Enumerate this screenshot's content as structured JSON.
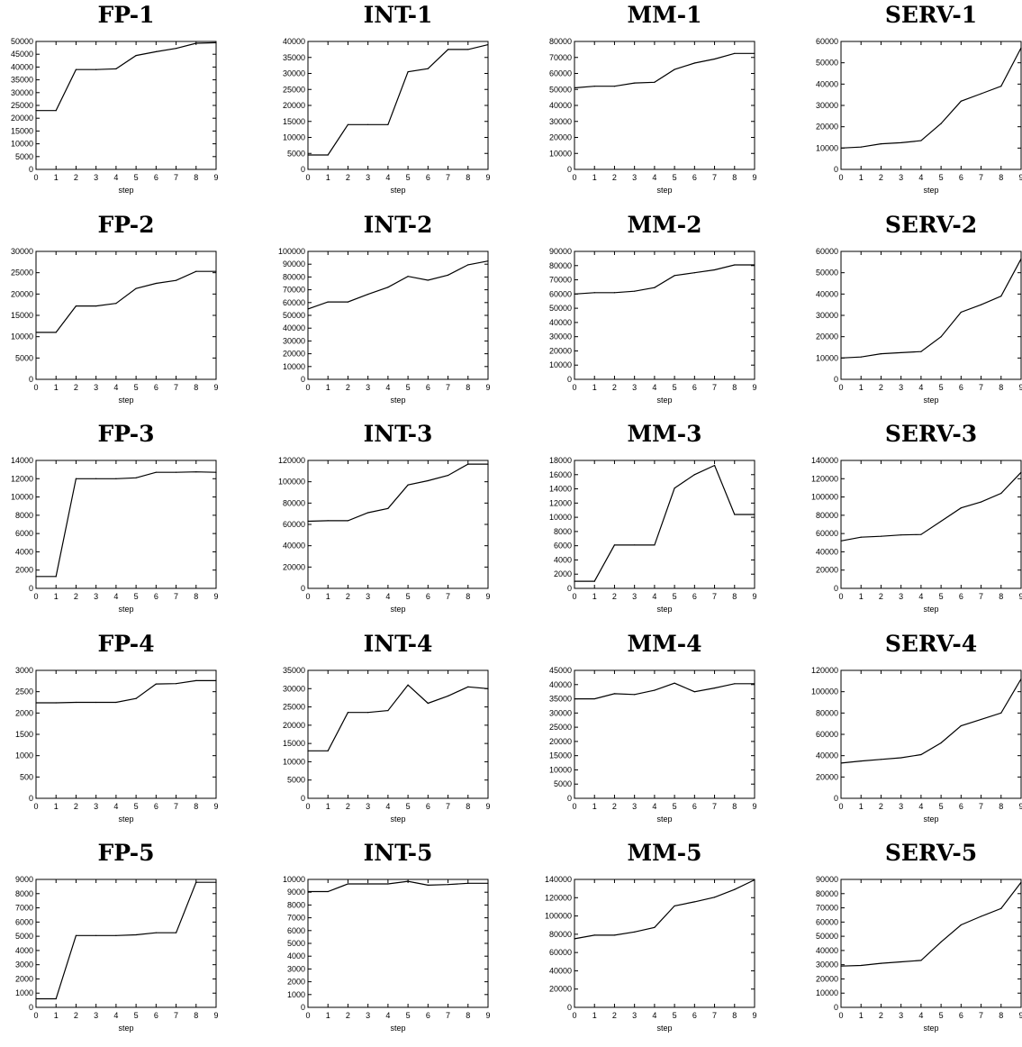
{
  "chart_data": [
    {
      "type": "line",
      "title": "FP-1",
      "xlabel": "step",
      "x": [
        0,
        1,
        2,
        3,
        4,
        5,
        6,
        7,
        8,
        9
      ],
      "ylim": [
        0,
        50000
      ],
      "yticks": [
        0,
        5000,
        10000,
        15000,
        20000,
        25000,
        30000,
        35000,
        40000,
        45000,
        50000
      ],
      "values": [
        23000,
        23000,
        39000,
        39000,
        39300,
        44500,
        46000,
        47300,
        49300,
        49500
      ]
    },
    {
      "type": "line",
      "title": "INT-1",
      "xlabel": "step",
      "x": [
        0,
        1,
        2,
        3,
        4,
        5,
        6,
        7,
        8,
        9
      ],
      "ylim": [
        0,
        40000
      ],
      "yticks": [
        0,
        5000,
        10000,
        15000,
        20000,
        25000,
        30000,
        35000,
        40000
      ],
      "values": [
        4500,
        4500,
        14000,
        14000,
        14000,
        30500,
        31500,
        37500,
        37500,
        39000
      ]
    },
    {
      "type": "line",
      "title": "MM-1",
      "xlabel": "step",
      "x": [
        0,
        1,
        2,
        3,
        4,
        5,
        6,
        7,
        8,
        9
      ],
      "ylim": [
        0,
        80000
      ],
      "yticks": [
        0,
        10000,
        20000,
        30000,
        40000,
        50000,
        60000,
        70000,
        80000
      ],
      "values": [
        51000,
        52000,
        52000,
        54000,
        54500,
        62500,
        66500,
        69000,
        72500,
        72500
      ]
    },
    {
      "type": "line",
      "title": "SERV-1",
      "xlabel": "step",
      "x": [
        0,
        1,
        2,
        3,
        4,
        5,
        6,
        7,
        8,
        9
      ],
      "ylim": [
        0,
        60000
      ],
      "yticks": [
        0,
        10000,
        20000,
        30000,
        40000,
        50000,
        60000
      ],
      "values": [
        10000,
        10500,
        12000,
        12500,
        13500,
        21500,
        32000,
        35500,
        39000,
        57000
      ]
    },
    {
      "type": "line",
      "title": "FP-2",
      "xlabel": "step",
      "x": [
        0,
        1,
        2,
        3,
        4,
        5,
        6,
        7,
        8,
        9
      ],
      "ylim": [
        0,
        30000
      ],
      "yticks": [
        0,
        5000,
        10000,
        15000,
        20000,
        25000,
        30000
      ],
      "values": [
        11000,
        11000,
        17200,
        17200,
        17800,
        21300,
        22500,
        23200,
        25300,
        25300
      ]
    },
    {
      "type": "line",
      "title": "INT-2",
      "xlabel": "step",
      "x": [
        0,
        1,
        2,
        3,
        4,
        5,
        6,
        7,
        8,
        9
      ],
      "ylim": [
        0,
        100000
      ],
      "yticks": [
        0,
        10000,
        20000,
        30000,
        40000,
        50000,
        60000,
        70000,
        80000,
        90000,
        100000
      ],
      "values": [
        55000,
        60500,
        60500,
        66500,
        72000,
        80500,
        77500,
        81500,
        89500,
        92500
      ]
    },
    {
      "type": "line",
      "title": "MM-2",
      "xlabel": "step",
      "x": [
        0,
        1,
        2,
        3,
        4,
        5,
        6,
        7,
        8,
        9
      ],
      "ylim": [
        0,
        90000
      ],
      "yticks": [
        0,
        10000,
        20000,
        30000,
        40000,
        50000,
        60000,
        70000,
        80000,
        90000
      ],
      "values": [
        60000,
        61000,
        61000,
        62000,
        64500,
        73000,
        75000,
        77000,
        80500,
        80500
      ]
    },
    {
      "type": "line",
      "title": "SERV-2",
      "xlabel": "step",
      "x": [
        0,
        1,
        2,
        3,
        4,
        5,
        6,
        7,
        8,
        9
      ],
      "ylim": [
        0,
        60000
      ],
      "yticks": [
        0,
        10000,
        20000,
        30000,
        40000,
        50000,
        60000
      ],
      "values": [
        10000,
        10500,
        12000,
        12500,
        13000,
        20000,
        31500,
        35000,
        39000,
        56500
      ]
    },
    {
      "type": "line",
      "title": "FP-3",
      "xlabel": "step",
      "x": [
        0,
        1,
        2,
        3,
        4,
        5,
        6,
        7,
        8,
        9
      ],
      "ylim": [
        0,
        14000
      ],
      "yticks": [
        0,
        2000,
        4000,
        6000,
        8000,
        10000,
        12000,
        14000
      ],
      "values": [
        1300,
        1300,
        12000,
        12000,
        12000,
        12100,
        12700,
        12700,
        12750,
        12700
      ]
    },
    {
      "type": "line",
      "title": "INT-3",
      "xlabel": "step",
      "x": [
        0,
        1,
        2,
        3,
        4,
        5,
        6,
        7,
        8,
        9
      ],
      "ylim": [
        0,
        120000
      ],
      "yticks": [
        0,
        20000,
        40000,
        60000,
        80000,
        100000,
        120000
      ],
      "values": [
        63000,
        63500,
        63500,
        71000,
        75000,
        97000,
        101000,
        106000,
        116500,
        116500
      ]
    },
    {
      "type": "line",
      "title": "MM-3",
      "xlabel": "step",
      "x": [
        0,
        1,
        2,
        3,
        4,
        5,
        6,
        7,
        8,
        9
      ],
      "ylim": [
        0,
        18000
      ],
      "yticks": [
        0,
        2000,
        4000,
        6000,
        8000,
        10000,
        12000,
        14000,
        16000,
        18000
      ],
      "values": [
        1000,
        1000,
        6100,
        6100,
        6100,
        14100,
        16000,
        17300,
        10400,
        10400
      ]
    },
    {
      "type": "line",
      "title": "SERV-3",
      "xlabel": "step",
      "x": [
        0,
        1,
        2,
        3,
        4,
        5,
        6,
        7,
        8,
        9
      ],
      "ylim": [
        0,
        140000
      ],
      "yticks": [
        0,
        20000,
        40000,
        60000,
        80000,
        100000,
        120000,
        140000
      ],
      "values": [
        52000,
        56000,
        57000,
        58500,
        59000,
        73500,
        88000,
        94500,
        104000,
        127000
      ]
    },
    {
      "type": "line",
      "title": "FP-4",
      "xlabel": "step",
      "x": [
        0,
        1,
        2,
        3,
        4,
        5,
        6,
        7,
        8,
        9
      ],
      "ylim": [
        0,
        3000
      ],
      "yticks": [
        0,
        500,
        1000,
        1500,
        2000,
        2500,
        3000
      ],
      "values": [
        2240,
        2240,
        2250,
        2250,
        2250,
        2340,
        2680,
        2690,
        2760,
        2760
      ]
    },
    {
      "type": "line",
      "title": "INT-4",
      "xlabel": "step",
      "x": [
        0,
        1,
        2,
        3,
        4,
        5,
        6,
        7,
        8,
        9
      ],
      "ylim": [
        0,
        35000
      ],
      "yticks": [
        0,
        5000,
        10000,
        15000,
        20000,
        25000,
        30000,
        35000
      ],
      "values": [
        13000,
        13000,
        23500,
        23500,
        24000,
        31000,
        26000,
        28000,
        30500,
        30000
      ]
    },
    {
      "type": "line",
      "title": "MM-4",
      "xlabel": "step",
      "x": [
        0,
        1,
        2,
        3,
        4,
        5,
        6,
        7,
        8,
        9
      ],
      "ylim": [
        0,
        45000
      ],
      "yticks": [
        0,
        5000,
        10000,
        15000,
        20000,
        25000,
        30000,
        35000,
        40000,
        45000
      ],
      "values": [
        35000,
        35000,
        36800,
        36500,
        38000,
        40500,
        37500,
        38800,
        40300,
        40300
      ]
    },
    {
      "type": "line",
      "title": "SERV-4",
      "xlabel": "step",
      "x": [
        0,
        1,
        2,
        3,
        4,
        5,
        6,
        7,
        8,
        9
      ],
      "ylim": [
        0,
        120000
      ],
      "yticks": [
        0,
        20000,
        40000,
        60000,
        80000,
        100000,
        120000
      ],
      "values": [
        33000,
        35000,
        36500,
        38000,
        41000,
        52000,
        68000,
        74000,
        80000,
        112000
      ]
    },
    {
      "type": "line",
      "title": "FP-5",
      "xlabel": "step",
      "x": [
        0,
        1,
        2,
        3,
        4,
        5,
        6,
        7,
        8,
        9
      ],
      "ylim": [
        0,
        9000
      ],
      "yticks": [
        0,
        1000,
        2000,
        3000,
        4000,
        5000,
        6000,
        7000,
        8000,
        9000
      ],
      "values": [
        600,
        600,
        5050,
        5050,
        5050,
        5100,
        5250,
        5250,
        8800,
        8800
      ]
    },
    {
      "type": "line",
      "title": "INT-5",
      "xlabel": "step",
      "x": [
        0,
        1,
        2,
        3,
        4,
        5,
        6,
        7,
        8,
        9
      ],
      "ylim": [
        0,
        10000
      ],
      "yticks": [
        0,
        1000,
        2000,
        3000,
        4000,
        5000,
        6000,
        7000,
        8000,
        9000,
        10000
      ],
      "values": [
        9050,
        9050,
        9650,
        9650,
        9650,
        9850,
        9550,
        9600,
        9700,
        9700
      ]
    },
    {
      "type": "line",
      "title": "MM-5",
      "xlabel": "step",
      "x": [
        0,
        1,
        2,
        3,
        4,
        5,
        6,
        7,
        8,
        9
      ],
      "ylim": [
        0,
        140000
      ],
      "yticks": [
        0,
        20000,
        40000,
        60000,
        80000,
        100000,
        120000,
        140000
      ],
      "values": [
        75000,
        79000,
        79000,
        82500,
        87500,
        111000,
        115500,
        120500,
        129000,
        139500
      ]
    },
    {
      "type": "line",
      "title": "SERV-5",
      "xlabel": "step",
      "x": [
        0,
        1,
        2,
        3,
        4,
        5,
        6,
        7,
        8,
        9
      ],
      "ylim": [
        0,
        90000
      ],
      "yticks": [
        0,
        10000,
        20000,
        30000,
        40000,
        50000,
        60000,
        70000,
        80000,
        90000
      ],
      "values": [
        29000,
        29500,
        31000,
        32000,
        33000,
        46000,
        58000,
        64000,
        69500,
        88000
      ]
    }
  ]
}
